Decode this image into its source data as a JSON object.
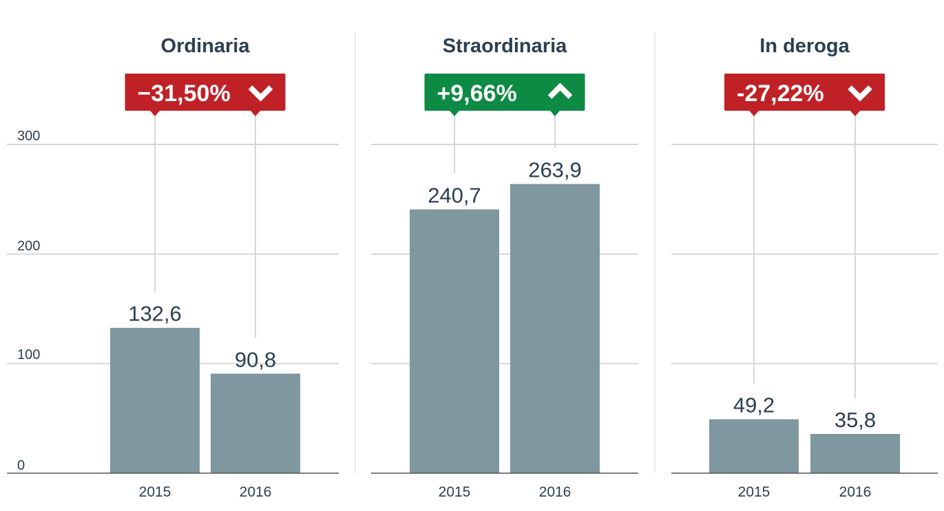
{
  "chart_data": {
    "type": "bar",
    "y_ticks": [
      0,
      100,
      200,
      300
    ],
    "ylim": [
      0,
      300
    ],
    "grid": true,
    "colors": {
      "bar": "#7f979e",
      "grid": "#d6d6d2",
      "axis": "#555555",
      "text": "#2b3f52",
      "negative": "#bf2127",
      "positive": "#0d8a44"
    },
    "panels": [
      {
        "title": "Ordinaria",
        "change": "−31,50%",
        "direction": "down",
        "categories": [
          "2015",
          "2016"
        ],
        "values": [
          132.6,
          90.8
        ],
        "value_labels": [
          "132,6",
          "90,8"
        ]
      },
      {
        "title": "Straordinaria",
        "change": "+9,66%",
        "direction": "up",
        "categories": [
          "2015",
          "2016"
        ],
        "values": [
          240.7,
          263.9
        ],
        "value_labels": [
          "240,7",
          "263,9"
        ]
      },
      {
        "title": "In deroga",
        "change": "-27,22%",
        "direction": "down",
        "categories": [
          "2015",
          "2016"
        ],
        "values": [
          49.2,
          35.8
        ],
        "value_labels": [
          "49,2",
          "35,8"
        ]
      }
    ]
  }
}
